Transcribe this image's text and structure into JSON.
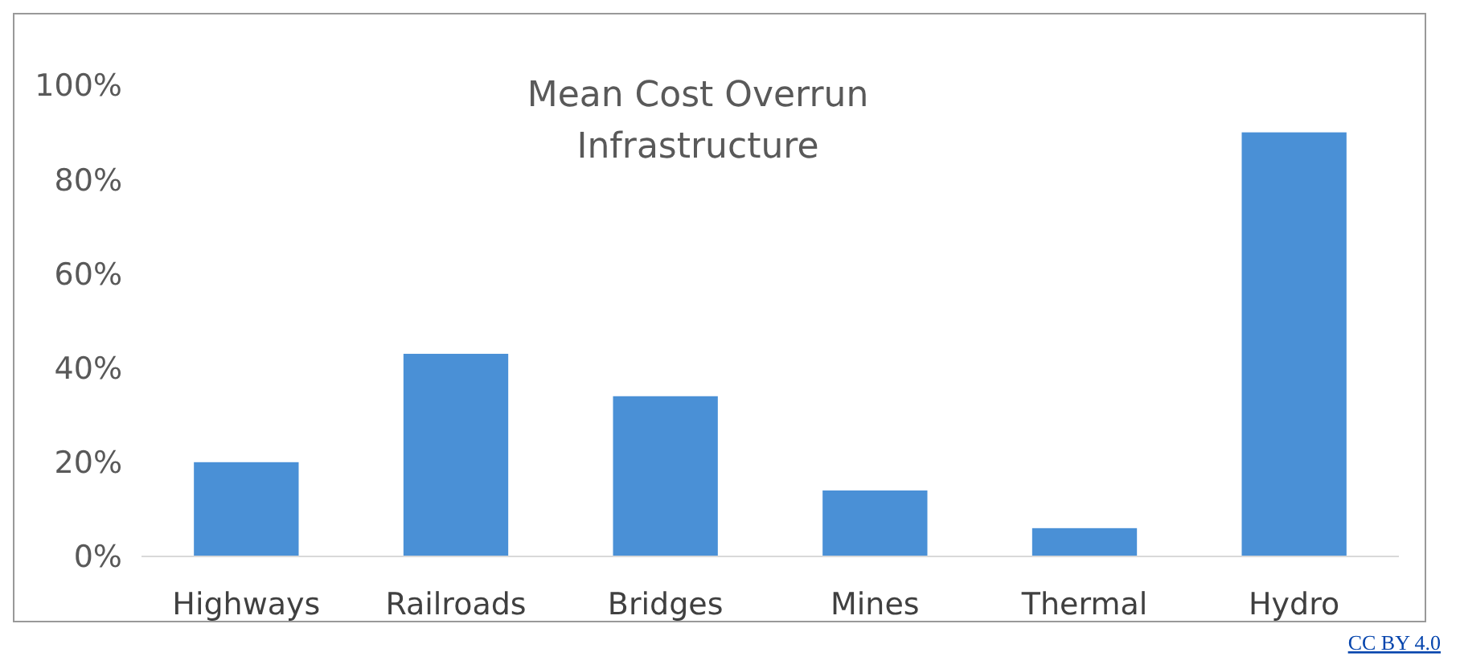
{
  "chart_data": {
    "type": "bar",
    "title": "Mean Cost Overrun\nInfrastructure",
    "categories": [
      "Highways",
      "Railroads",
      "Bridges",
      "Mines",
      "Thermal",
      "Hydro"
    ],
    "values": [
      20,
      43,
      34,
      14,
      6,
      90
    ],
    "color": "#4a90d6",
    "ylim": [
      0,
      100
    ],
    "yticks": [
      {
        "value": 0,
        "label": "0%"
      },
      {
        "value": 20,
        "label": "20%"
      },
      {
        "value": 40,
        "label": "40%"
      },
      {
        "value": 60,
        "label": "60%"
      },
      {
        "value": 80,
        "label": "80%"
      },
      {
        "value": 100,
        "label": "100%"
      }
    ],
    "grid": false,
    "annotations": [
      "CC BY 4.0"
    ]
  }
}
